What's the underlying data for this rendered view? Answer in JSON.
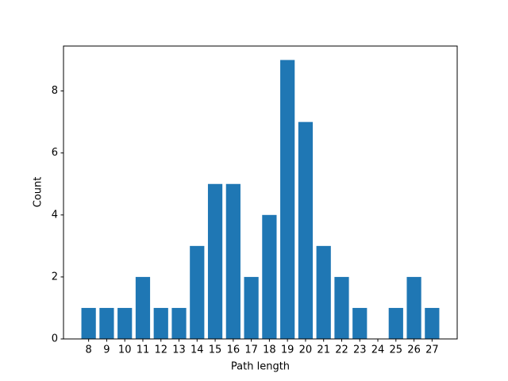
{
  "chart_data": {
    "type": "bar",
    "x_label": "Path length",
    "y_label": "Count",
    "x": [
      8,
      9,
      10,
      11,
      12,
      13,
      14,
      15,
      16,
      17,
      18,
      19,
      20,
      21,
      22,
      23,
      25,
      26,
      27
    ],
    "values": [
      1,
      1,
      1,
      2,
      1,
      1,
      3,
      5,
      5,
      2,
      4,
      9,
      7,
      3,
      2,
      1,
      1,
      2,
      1
    ],
    "color": "#1f77b4",
    "xlim": [
      6.61,
      28.39
    ],
    "xticks": [
      8,
      9,
      10,
      11,
      12,
      13,
      14,
      15,
      16,
      17,
      18,
      19,
      20,
      21,
      22,
      23,
      24,
      25,
      26,
      27
    ],
    "ylim": [
      0,
      9.45
    ],
    "yticks": [
      0,
      2,
      4,
      6,
      8
    ]
  }
}
